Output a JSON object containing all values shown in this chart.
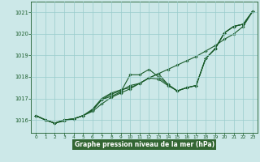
{
  "background_color": "#cce8e8",
  "grid_color": "#99cccc",
  "line_color": "#1a5c2a",
  "marker_color": "#1a5c2a",
  "xlabel": "Graphe pression niveau de la mer (hPa)",
  "xlabel_color": "#1a5c2a",
  "xlabel_bg": "#336633",
  "xlim": [
    -0.5,
    23.5
  ],
  "ylim": [
    1015.4,
    1021.5
  ],
  "yticks": [
    1016,
    1017,
    1018,
    1019,
    1020,
    1021
  ],
  "xticks": [
    0,
    1,
    2,
    3,
    4,
    5,
    6,
    7,
    8,
    9,
    10,
    11,
    12,
    13,
    14,
    15,
    16,
    17,
    18,
    19,
    20,
    21,
    22,
    23
  ],
  "series": [
    [
      1016.2,
      1016.0,
      1015.85,
      1015.95,
      1016.05,
      1016.2,
      1016.4,
      1016.75,
      1017.05,
      1017.25,
      1017.45,
      1017.7,
      1017.95,
      1018.15,
      1018.35,
      1018.55,
      1018.75,
      1018.95,
      1019.2,
      1019.45,
      1019.75,
      1020.0,
      1020.35,
      1021.05
    ],
    [
      1016.2,
      1016.0,
      1015.85,
      1016.0,
      1016.05,
      1016.2,
      1016.45,
      1016.95,
      1017.1,
      1017.3,
      1018.1,
      1018.1,
      1018.35,
      1018.0,
      1017.65,
      1017.35,
      1017.5,
      1017.6,
      1018.85,
      1019.3,
      1020.05,
      1020.35,
      1020.45,
      1021.05
    ],
    [
      1016.2,
      1016.0,
      1015.85,
      1016.0,
      1016.05,
      1016.2,
      1016.45,
      1016.95,
      1017.2,
      1017.35,
      1017.6,
      1017.7,
      1017.95,
      1017.9,
      1017.6,
      1017.35,
      1017.5,
      1017.6,
      1018.85,
      1019.3,
      1020.05,
      1020.35,
      1020.45,
      1021.05
    ],
    [
      1016.2,
      1016.0,
      1015.85,
      1016.0,
      1016.05,
      1016.2,
      1016.5,
      1017.0,
      1017.25,
      1017.4,
      1017.5,
      1017.7,
      1017.95,
      1018.15,
      1017.65,
      1017.35,
      1017.5,
      1017.6,
      1018.85,
      1019.3,
      1020.05,
      1020.35,
      1020.45,
      1021.05
    ]
  ]
}
